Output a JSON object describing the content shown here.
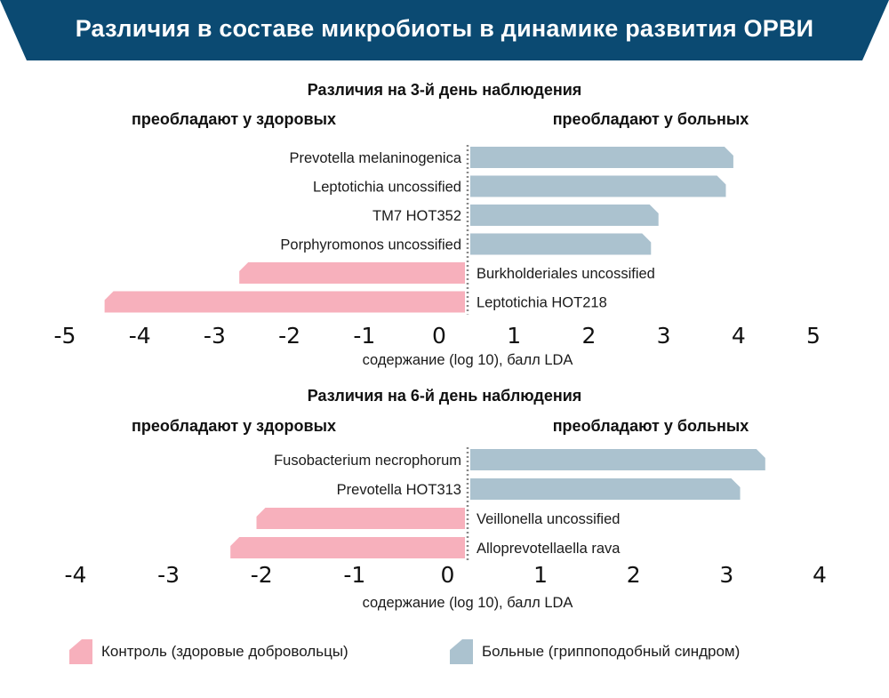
{
  "header": {
    "title": "Различия в составе микробиоты в динамике развития ОРВИ"
  },
  "colors": {
    "banner": "#0b4a72",
    "healthy": "#f7b0bc",
    "sick": "#abc2cf",
    "zero_line": "#888888"
  },
  "chart_data": [
    {
      "type": "bar",
      "orientation": "horizontal-diverging",
      "title": "Различия на 3-й день наблюдения",
      "left_heading": "преобладают у здоровых",
      "right_heading": "преобладают у больных",
      "xlabel": "содержание (log 10), балл LDA",
      "xlim": [
        -5,
        5
      ],
      "ticks": [
        "-5",
        "-4",
        "-3",
        "-2",
        "-1",
        "0",
        "1",
        "2",
        "3",
        "4",
        "5"
      ],
      "grid": false,
      "categories": [
        "Prevotella melaninogenica",
        "Leptotichia uncossified",
        "TM7 HOT352",
        "Porphyromonos uncossified",
        "Burkholderiales uncossified",
        "Leptotichia HOT218"
      ],
      "values": [
        3.55,
        3.45,
        2.55,
        2.45,
        -3.05,
        -4.85
      ],
      "groups": [
        "sick",
        "sick",
        "sick",
        "sick",
        "healthy",
        "healthy"
      ]
    },
    {
      "type": "bar",
      "orientation": "horizontal-diverging",
      "title": "Различия на 6-й день наблюдения",
      "left_heading": "преобладают у здоровых",
      "right_heading": "преобладают у больных",
      "xlabel": "содержание (log 10), балл LDA",
      "xlim": [
        -4,
        4
      ],
      "ticks": [
        "-4",
        "-3",
        "-2",
        "-1",
        "0",
        "1",
        "2",
        "3",
        "4"
      ],
      "grid": false,
      "categories": [
        "Fusobacterium necrophorum",
        "Prevotella HOT313",
        "Veillonella uncossified",
        "Alloprevotellaella rava"
      ],
      "values": [
        3.2,
        2.93,
        -2.27,
        -2.55
      ],
      "groups": [
        "sick",
        "sick",
        "healthy",
        "healthy"
      ]
    }
  ],
  "legend": {
    "healthy_label": "Контроль (здоровые добровольцы)",
    "sick_label": "Больные (гриппоподобный синдром)"
  }
}
